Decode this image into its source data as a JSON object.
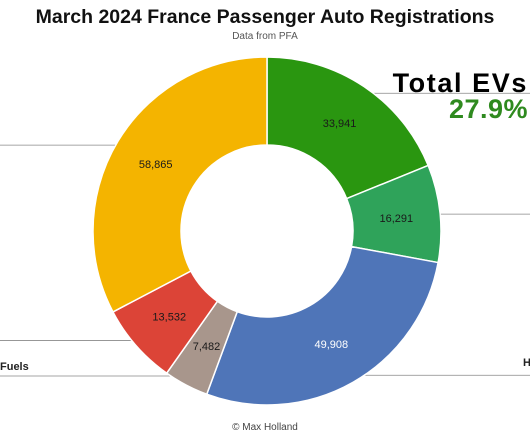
{
  "chart_data": {
    "type": "pie",
    "title": "March 2024 France Passenger Auto Registrations",
    "subtitle": "Data from PFA",
    "donut": true,
    "slices": [
      {
        "value": 33941,
        "label": "33,941",
        "color": "#2a9610"
      },
      {
        "value": 16291,
        "label": "16,291",
        "color": "#2fa35a"
      },
      {
        "value": 49908,
        "label": "49,908",
        "color": "#4f75b8"
      },
      {
        "value": 7482,
        "label": "7,482",
        "color": "#a8968c"
      },
      {
        "value": 13532,
        "label": "13,532",
        "color": "#dc4437"
      },
      {
        "value": 58865,
        "label": "58,865",
        "color": "#f4b400"
      }
    ]
  },
  "callout": {
    "title": "Total EVs",
    "value": "27.9%",
    "value_color": "#2f8a1f"
  },
  "partial_labels": {
    "left": "Fuels",
    "right": "H"
  },
  "footer": "© Max Holland"
}
